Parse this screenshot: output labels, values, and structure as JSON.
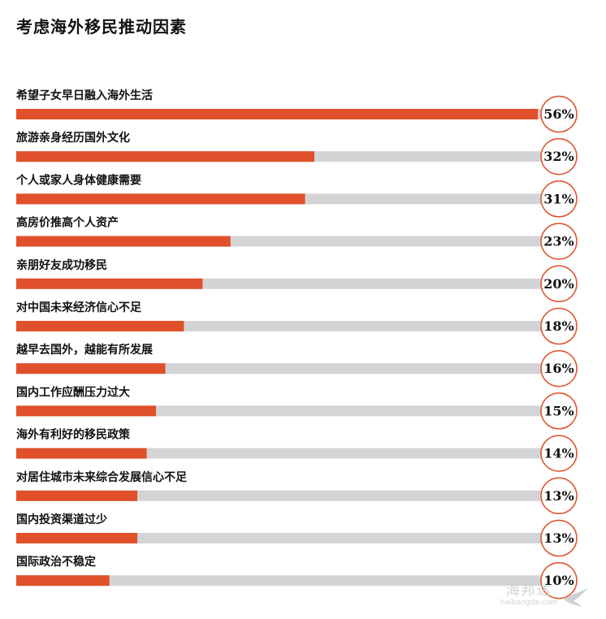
{
  "chart_data": {
    "type": "bar",
    "orientation": "horizontal",
    "title": "考虑海外移民推动因素",
    "categories": [
      "希望子女早日融入海外生活",
      "旅游亲身经历国外文化",
      "个人或家人身体健康需要",
      "高房价推高个人资产",
      "亲朋好友成功移民",
      "对中国未来经济信心不足",
      "越早去国外，越能有所发展",
      "国内工作应酬压力过大",
      "海外有利好的移民政策",
      "对居住城市未来综合发展信心不足",
      "国内投资渠道过少",
      "国际政治不稳定"
    ],
    "values": [
      56,
      32,
      31,
      23,
      20,
      18,
      16,
      15,
      14,
      13,
      13,
      10
    ],
    "value_labels": [
      "56%",
      "32%",
      "31%",
      "23%",
      "20%",
      "18%",
      "16%",
      "15%",
      "14%",
      "13%",
      "13%",
      "10%"
    ],
    "xlim": [
      0,
      60
    ],
    "bar_color": "#e0502a",
    "track_color": "#d4d4d4",
    "circle_color": "#e0502a"
  },
  "watermark": {
    "brand": "海邦达",
    "url": "haibangda.com"
  }
}
